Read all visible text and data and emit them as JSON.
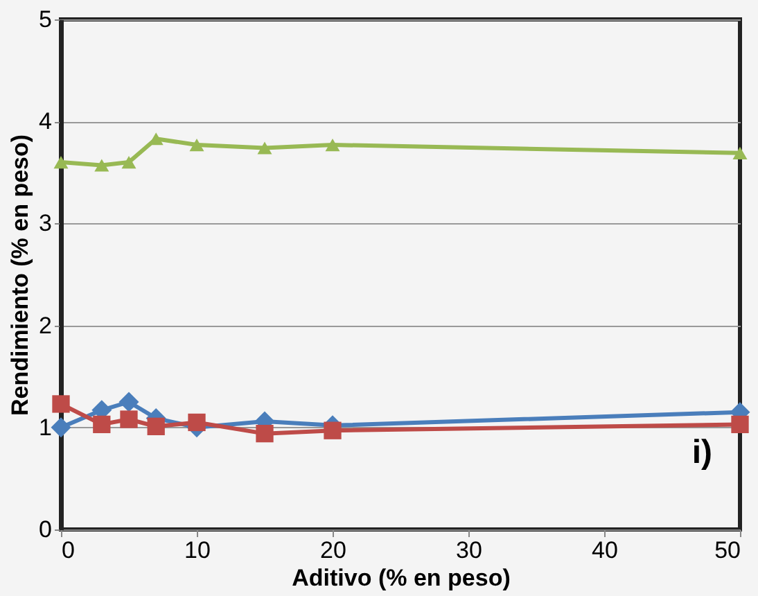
{
  "chart_data": {
    "type": "line",
    "xlabel": "Aditivo (% en peso)",
    "ylabel": "Rendimiento (% en peso)",
    "x": [
      0,
      3,
      5,
      7,
      10,
      15,
      20,
      50
    ],
    "series": [
      {
        "color": "#4a7ebb",
        "marker": "diamond",
        "values": [
          1.0,
          1.17,
          1.25,
          1.09,
          1.0,
          1.06,
          1.02,
          1.15
        ]
      },
      {
        "color": "#be4b48",
        "marker": "square",
        "values": [
          1.23,
          1.03,
          1.08,
          1.01,
          1.05,
          0.94,
          0.97,
          1.03
        ]
      },
      {
        "color": "#98b954",
        "marker": "triangle",
        "values": [
          3.6,
          3.57,
          3.6,
          3.83,
          3.77,
          3.74,
          3.77,
          3.69
        ]
      }
    ],
    "xlim": [
      0,
      50
    ],
    "xticks": [
      0,
      10,
      20,
      30,
      40,
      50
    ],
    "ylim": [
      0,
      5
    ],
    "yticks": [
      0,
      1,
      2,
      3,
      4,
      5
    ],
    "grid": "y",
    "annotations": [
      "i)"
    ]
  }
}
